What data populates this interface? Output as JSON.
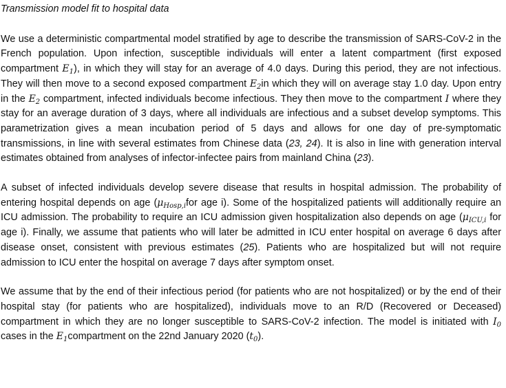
{
  "heading": "Transmission model fit to hospital data",
  "p1": {
    "s1": "We use a deterministic compartmental model stratified by age to describe the transmission of SARS-CoV-2 in the French population. Upon infection, susceptible individuals will enter a latent compartment (first exposed compartment ",
    "e1_sym": "E",
    "e1_sub": "1",
    "s2": "), in which they will stay for an average of 4.0 days. During this period, they are not infectious. They will then move to a second exposed compartment ",
    "e2_sym": "E",
    "e2_sub": "2",
    "s3": "in which they will on average stay 1.0 day. Upon entry in the ",
    "e2b_sym": "E",
    "e2b_sub": "2",
    "s4": " compartment, infected individuals become infectious. They then move to the compartment ",
    "i_sym": "I",
    "s5": " where they stay for an average duration of 3 days, where all individuals are infectious and a subset develop symptoms. This parametrization gives a mean incubation period of 5 days and allows for one day of pre-symptomatic transmissions, in line with several estimates from Chinese data (",
    "ref1": "23, 24",
    "s6": "). It is also in line with generation interval estimates obtained from analyses of infector-infectee pairs from mainland China (",
    "ref2": "23",
    "s7": ")."
  },
  "p2": {
    "s1": "A subset of infected individuals develop severe disease that results in hospital admission. The probability of entering hospital depends on age (",
    "mu_hosp_sym": "μ",
    "mu_hosp_sub": "Hosp,i",
    "s2": "for age i). Some of the hospitalized patients will additionally require an ICU admission. The probability to require an ICU admission given hospitalization also depends on age (",
    "mu_icu_sym": "μ",
    "mu_icu_sub": "ICU,i",
    "s3": " for age i). Finally, we assume that patients who will later be admitted in ICU enter hospital on average 6 days after disease onset, consistent with previous estimates (",
    "ref": "25",
    "s4": "). Patients who are hospitalized but will not require admission to ICU enter the hospital on average 7 days after symptom onset."
  },
  "p3": {
    "s1": "We assume that by the end of their infectious period (for patients who are not hospitalized) or by the end of their hospital stay (for patients who are hospitalized), individuals move to an R/D (Recovered or Deceased) compartment in which they are no longer susceptible to SARS-CoV-2 infection. The model is initiated with ",
    "i0_sym": "I",
    "i0_sub": "0",
    "s2": " cases in the ",
    "e1_sym": "E",
    "e1_sub": "1",
    "s3": "compartment on the 22nd January 2020 (",
    "t0_sym": "t",
    "t0_sub": "0",
    "s4": ")."
  }
}
